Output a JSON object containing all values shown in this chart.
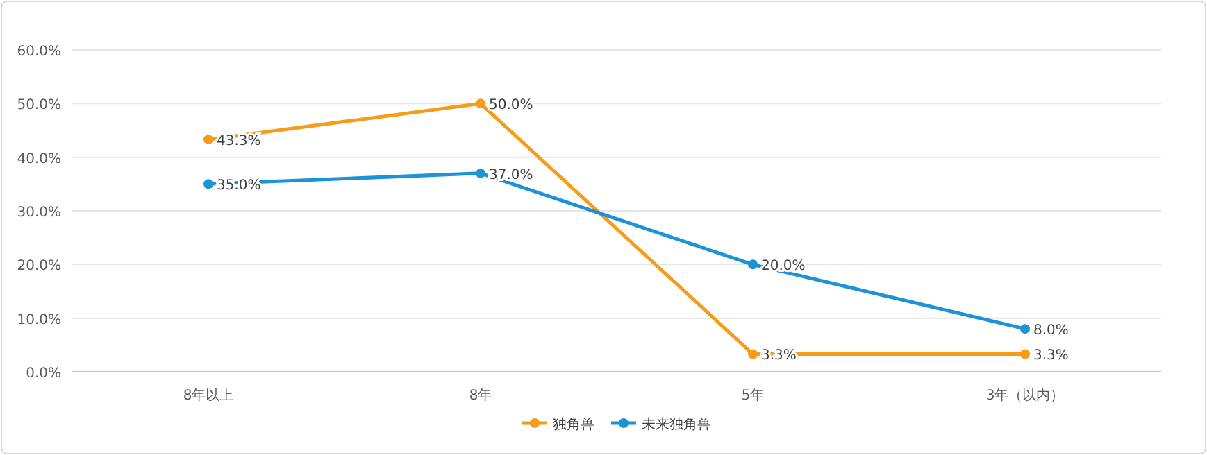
{
  "chart_data": {
    "type": "line",
    "categories": [
      "8年以上",
      "8年",
      "5年",
      "3年（以内）"
    ],
    "series": [
      {
        "name": "独角兽",
        "color": "#f59c1a",
        "values": [
          43.3,
          50.0,
          3.3,
          3.3
        ],
        "value_labels": [
          "43.3%",
          "50.0%",
          "3.3%",
          "3.3%"
        ]
      },
      {
        "name": "未来独角兽",
        "color": "#1b93d6",
        "values": [
          35.0,
          37.0,
          20.0,
          8.0
        ],
        "value_labels": [
          "35.0%",
          "37.0%",
          "20.0%",
          "8.0%"
        ]
      }
    ],
    "ylim": [
      0,
      60
    ],
    "yticks": [
      {
        "value": 0,
        "label": "0.0%"
      },
      {
        "value": 10,
        "label": "10.0%"
      },
      {
        "value": 20,
        "label": "20.0%"
      },
      {
        "value": 30,
        "label": "30.0%"
      },
      {
        "value": 40,
        "label": "40.0%"
      },
      {
        "value": 50,
        "label": "50.0%"
      },
      {
        "value": 60,
        "label": "60.0%"
      }
    ],
    "grid": "y",
    "legend": "bottom",
    "marker": "circle",
    "line_style": "solid"
  }
}
